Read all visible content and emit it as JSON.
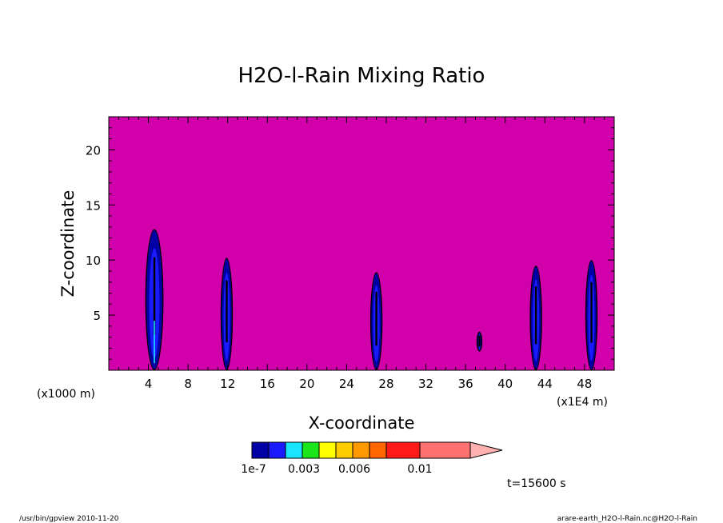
{
  "chart_data": {
    "type": "contour",
    "title": "H2O-l-Rain Mixing Ratio",
    "xlabel": "X-coordinate",
    "ylabel": "Z-coordinate",
    "x_unit_left": "(x1000 m)",
    "x_unit_right": "(x1E4 m)",
    "xlim": [
      0,
      51
    ],
    "ylim": [
      0,
      23
    ],
    "x_ticks": [
      4,
      8,
      12,
      16,
      20,
      24,
      28,
      32,
      36,
      40,
      44,
      48
    ],
    "y_ticks": [
      5,
      10,
      15,
      20
    ],
    "background_color": "#d100aa",
    "colorbar": {
      "colors": [
        "#0000a6",
        "#1a1aff",
        "#1ae5ff",
        "#1ae61a",
        "#ffff00",
        "#ffcc00",
        "#ff9900",
        "#ff6600",
        "#ff1a1a",
        "#ff7070"
      ],
      "extend_color": "#ffb0b0",
      "labels": [
        "1e-7",
        "0.003",
        "0.006",
        "0.01"
      ]
    },
    "plumes": [
      {
        "x": 4.6,
        "top": 12.8,
        "width": 1.6
      },
      {
        "x": 11.9,
        "top": 10.2,
        "width": 1.0
      },
      {
        "x": 27.0,
        "top": 8.9,
        "width": 1.0
      },
      {
        "x": 37.4,
        "bottom": 1.7,
        "top": 3.5,
        "width": 0.35
      },
      {
        "x": 43.1,
        "top": 9.5,
        "width": 1.0
      },
      {
        "x": 48.7,
        "top": 10.0,
        "width": 1.0
      }
    ]
  },
  "time_label": "t=15600 s",
  "footer_left": "/usr/bin/gpview   2010-11-20",
  "footer_right": "arare-earth_H2O-l-Rain.nc@H2O-l-Rain"
}
